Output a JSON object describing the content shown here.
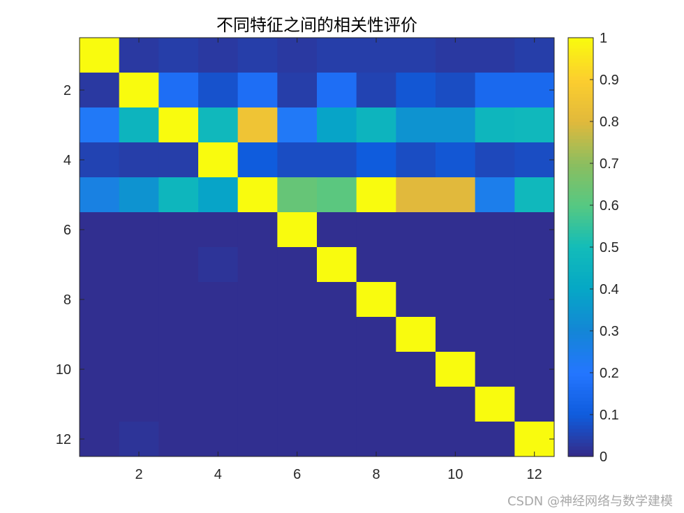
{
  "chart_data": {
    "type": "heatmap",
    "title": "不同特征之间的相关性评价",
    "xlabel": "",
    "ylabel": "",
    "x_ticks": [
      "2",
      "4",
      "6",
      "8",
      "10",
      "12"
    ],
    "y_ticks": [
      "2",
      "4",
      "6",
      "8",
      "10",
      "12"
    ],
    "xlim": [
      0.5,
      12.5
    ],
    "ylim": [
      0.5,
      12.5
    ],
    "y_reversed": true,
    "colormap": "parula",
    "clim": [
      0,
      1
    ],
    "colorbar": {
      "ticks": [
        "0",
        "0.1",
        "0.2",
        "0.3",
        "0.4",
        "0.5",
        "0.6",
        "0.7",
        "0.8",
        "0.9",
        "1"
      ],
      "placement": "right"
    },
    "matrix": [
      [
        1.0,
        0.03,
        0.04,
        0.03,
        0.04,
        0.03,
        0.04,
        0.04,
        0.04,
        0.03,
        0.03,
        0.04
      ],
      [
        0.03,
        1.0,
        0.17,
        0.08,
        0.17,
        0.04,
        0.17,
        0.05,
        0.09,
        0.07,
        0.15,
        0.15
      ],
      [
        0.22,
        0.46,
        1.0,
        0.48,
        0.85,
        0.22,
        0.39,
        0.46,
        0.34,
        0.34,
        0.47,
        0.48
      ],
      [
        0.05,
        0.04,
        0.04,
        1.0,
        0.1,
        0.07,
        0.07,
        0.1,
        0.07,
        0.09,
        0.06,
        0.07
      ],
      [
        0.27,
        0.34,
        0.47,
        0.39,
        1.0,
        0.63,
        0.61,
        1.0,
        0.8,
        0.8,
        0.25,
        0.48
      ],
      [
        0.01,
        0.01,
        0.01,
        0.01,
        0.01,
        1.0,
        0.01,
        0.01,
        0.01,
        0.01,
        0.01,
        0.01
      ],
      [
        0.01,
        0.01,
        0.01,
        0.02,
        0.01,
        0.01,
        1.0,
        0.01,
        0.01,
        0.01,
        0.01,
        0.01
      ],
      [
        0.01,
        0.01,
        0.01,
        0.01,
        0.01,
        0.01,
        0.01,
        1.0,
        0.01,
        0.01,
        0.01,
        0.01
      ],
      [
        0.01,
        0.01,
        0.01,
        0.01,
        0.01,
        0.01,
        0.01,
        0.01,
        1.0,
        0.01,
        0.01,
        0.01
      ],
      [
        0.01,
        0.01,
        0.01,
        0.01,
        0.01,
        0.01,
        0.01,
        0.01,
        0.01,
        1.0,
        0.01,
        0.01
      ],
      [
        0.01,
        0.01,
        0.01,
        0.01,
        0.01,
        0.01,
        0.01,
        0.01,
        0.01,
        0.01,
        1.0,
        0.01
      ],
      [
        0.01,
        0.02,
        0.01,
        0.01,
        0.01,
        0.01,
        0.01,
        0.01,
        0.01,
        0.01,
        0.01,
        1.0
      ]
    ]
  },
  "watermark": "CSDN @神经网络与数学建模"
}
